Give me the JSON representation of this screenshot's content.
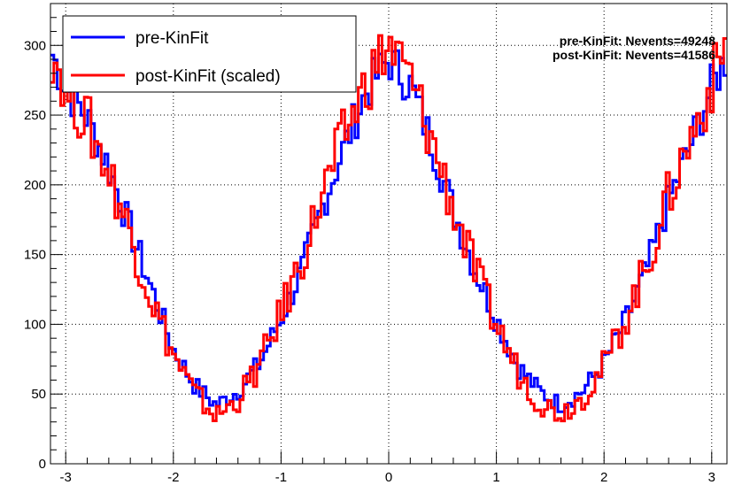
{
  "chart_data": {
    "type": "line",
    "step": true,
    "xlim": [
      -3.14159,
      3.14159
    ],
    "ylim": [
      0,
      330
    ],
    "x_ticks": [
      -3,
      -2,
      -1,
      0,
      1,
      2,
      3
    ],
    "y_ticks": [
      0,
      50,
      100,
      150,
      200,
      250,
      300
    ],
    "grid": true,
    "legend_position": "top-left",
    "colors": {
      "pre": "#0000ff",
      "post": "#ff0000"
    },
    "series": [
      {
        "name": "pre-KinFit",
        "color": "#0000ff",
        "x": [
          -3.14,
          -3.0,
          -2.8,
          -2.6,
          -2.4,
          -2.2,
          -2.0,
          -1.8,
          -1.6,
          -1.4,
          -1.2,
          -1.0,
          -0.8,
          -0.6,
          -0.4,
          -0.2,
          0.0,
          0.2,
          0.4,
          0.6,
          0.8,
          1.0,
          1.2,
          1.4,
          1.6,
          1.8,
          2.0,
          2.2,
          2.4,
          2.6,
          2.8,
          3.0,
          3.14
        ],
        "y": [
          296,
          270,
          248,
          213,
          168,
          125,
          82,
          56,
          42,
          52,
          72,
          104,
          140,
          188,
          230,
          268,
          290,
          272,
          230,
          182,
          140,
          104,
          70,
          52,
          42,
          52,
          72,
          102,
          140,
          188,
          228,
          270,
          292
        ]
      },
      {
        "name": "post-KinFit (scaled)",
        "color": "#ff0000",
        "x": [
          -3.14,
          -3.0,
          -2.8,
          -2.6,
          -2.4,
          -2.2,
          -2.0,
          -1.8,
          -1.6,
          -1.4,
          -1.2,
          -1.0,
          -0.8,
          -0.6,
          -0.4,
          -0.2,
          0.0,
          0.2,
          0.4,
          0.6,
          0.8,
          1.0,
          1.2,
          1.4,
          1.6,
          1.8,
          2.0,
          2.2,
          2.4,
          2.6,
          2.8,
          3.0,
          3.14
        ],
        "y": [
          300,
          272,
          245,
          210,
          165,
          118,
          78,
          50,
          34,
          46,
          70,
          108,
          148,
          196,
          238,
          274,
          300,
          276,
          232,
          184,
          138,
          100,
          66,
          44,
          36,
          48,
          70,
          104,
          142,
          192,
          232,
          272,
          302
        ]
      }
    ]
  },
  "legend": {
    "entries": [
      {
        "label": "pre-KinFit",
        "color": "#0000ff"
      },
      {
        "label": "post-KinFit (scaled)",
        "color": "#ff0000"
      }
    ]
  },
  "stats": {
    "pre": "pre-KinFit: Nevents=49248",
    "post": "post-KinFit: Nevents=41586"
  }
}
